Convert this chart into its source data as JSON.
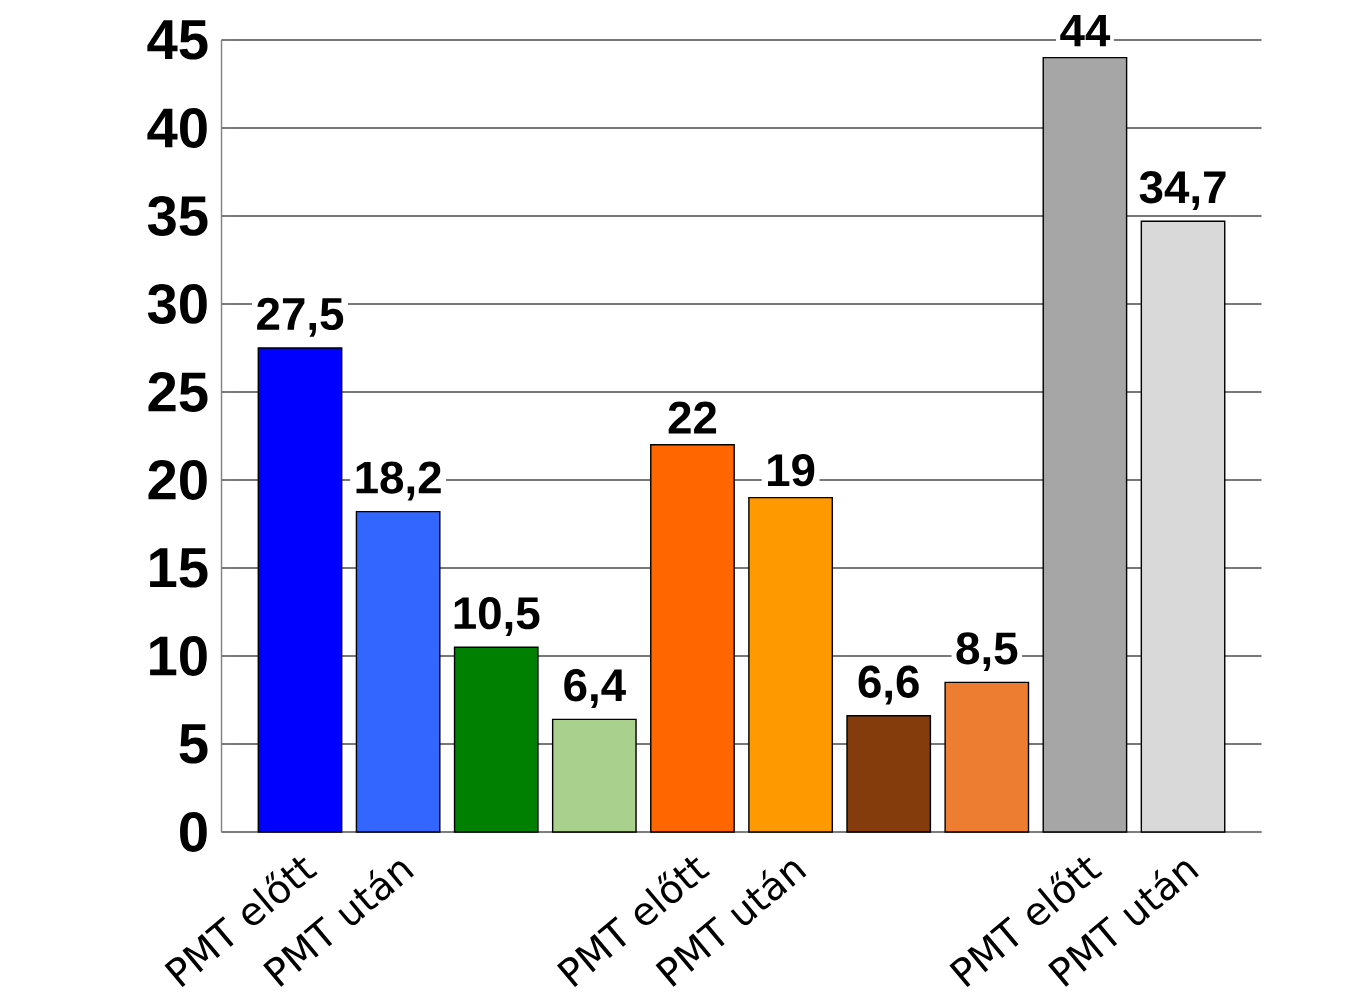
{
  "chart_data": {
    "type": "bar",
    "categories": [
      "PMT előtt",
      "PMT után",
      null,
      null,
      "PMT előtt",
      "PMT után",
      null,
      null,
      "PMT előtt",
      "PMT után"
    ],
    "values": [
      27.5,
      18.2,
      10.5,
      6.4,
      22,
      19,
      6.6,
      8.5,
      44,
      34.7
    ],
    "value_labels": [
      "27,5",
      "18,2",
      "10,5",
      "6,4",
      "22",
      "19",
      "6,6",
      "8,5",
      "44",
      "34,7"
    ],
    "colors": [
      "#0000ff",
      "#3366ff",
      "#008000",
      "#aad08e",
      "#ff6600",
      "#ff9900",
      "#843c0c",
      "#ed7d31",
      "#a6a6a6",
      "#d9d9d9"
    ],
    "ylim": [
      0,
      45
    ],
    "yticks": [
      0,
      5,
      10,
      15,
      20,
      25,
      30,
      35,
      40,
      45
    ],
    "grid": "y"
  }
}
